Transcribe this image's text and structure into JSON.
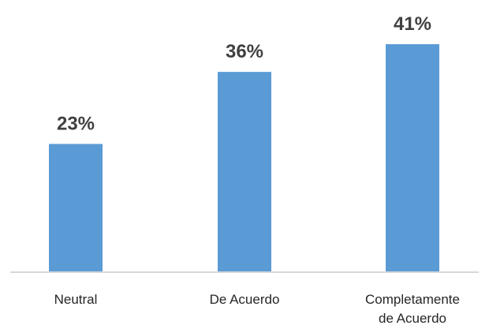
{
  "chart_data": {
    "type": "bar",
    "categories": [
      [
        "Neutral"
      ],
      [
        "De Acuerdo"
      ],
      [
        "Completamente",
        "de Acuerdo"
      ]
    ],
    "values": [
      23,
      36,
      41
    ],
    "value_labels": [
      "23%",
      "36%",
      "41%"
    ],
    "value_unit": "%",
    "bar_color": "#5b9bd5",
    "axis_color": "#bfbfbf",
    "grid": false,
    "legend": "none",
    "title": "",
    "xlabel": "",
    "ylabel": ""
  }
}
